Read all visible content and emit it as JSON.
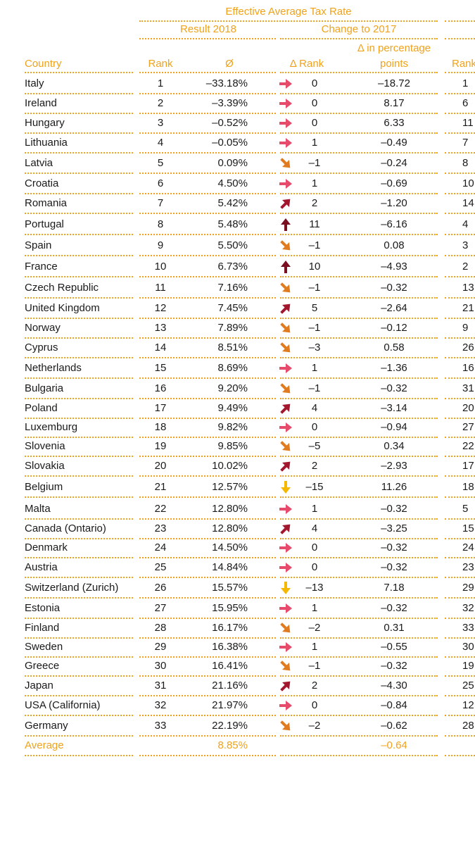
{
  "header": {
    "title": "Effective Average Tax Rate",
    "group_result": "Result 2018",
    "group_change": "Change to 2017",
    "col_country": "Country",
    "col_rank": "Rank",
    "col_avg": "Ø",
    "col_delta_rank": "Δ Rank",
    "col_delta_pp_line1": "Δ in percentage",
    "col_delta_pp_line2": "points",
    "col_rank_cut": "Rank"
  },
  "rows": [
    {
      "country": "Italy",
      "rank": "1",
      "rate": "–33.18%",
      "trend": "right",
      "delta_rank": "0",
      "delta_pp": "–18.72",
      "rank_next": "1"
    },
    {
      "country": "Ireland",
      "rank": "2",
      "rate": "–3.39%",
      "trend": "right",
      "delta_rank": "0",
      "delta_pp": "8.17",
      "rank_next": "6"
    },
    {
      "country": "Hungary",
      "rank": "3",
      "rate": "–0.52%",
      "trend": "right",
      "delta_rank": "0",
      "delta_pp": "6.33",
      "rank_next": "11"
    },
    {
      "country": "Lithuania",
      "rank": "4",
      "rate": "–0.05%",
      "trend": "right",
      "delta_rank": "1",
      "delta_pp": "–0.49",
      "rank_next": "7"
    },
    {
      "country": "Latvia",
      "rank": "5",
      "rate": "0.09%",
      "trend": "down-right",
      "delta_rank": "–1",
      "delta_pp": "–0.24",
      "rank_next": "8"
    },
    {
      "country": "Croatia",
      "rank": "6",
      "rate": "4.50%",
      "trend": "right",
      "delta_rank": "1",
      "delta_pp": "–0.69",
      "rank_next": "10"
    },
    {
      "country": "Romania",
      "rank": "7",
      "rate": "5.42%",
      "trend": "up-right",
      "delta_rank": "2",
      "delta_pp": "–1.20",
      "rank_next": "14"
    },
    {
      "country": "Portugal",
      "rank": "8",
      "rate": "5.48%",
      "trend": "up",
      "delta_rank": "11",
      "delta_pp": "–6.16",
      "rank_next": "4"
    },
    {
      "country": "Spain",
      "rank": "9",
      "rate": "5.50%",
      "trend": "down-right",
      "delta_rank": "–1",
      "delta_pp": "0.08",
      "rank_next": "3"
    },
    {
      "country": "France",
      "rank": "10",
      "rate": "6.73%",
      "trend": "up",
      "delta_rank": "10",
      "delta_pp": "–4.93",
      "rank_next": "2"
    },
    {
      "country": "Czech Republic",
      "rank": "11",
      "rate": "7.16%",
      "trend": "down-right",
      "delta_rank": "–1",
      "delta_pp": "–0.32",
      "rank_next": "13"
    },
    {
      "country": "United Kingdom",
      "rank": "12",
      "rate": "7.45%",
      "trend": "up-right",
      "delta_rank": "5",
      "delta_pp": "–2.64",
      "rank_next": "21"
    },
    {
      "country": "Norway",
      "rank": "13",
      "rate": "7.89%",
      "trend": "down-right",
      "delta_rank": "–1",
      "delta_pp": "–0.12",
      "rank_next": "9"
    },
    {
      "country": "Cyprus",
      "rank": "14",
      "rate": "8.51%",
      "trend": "down-right",
      "delta_rank": "–3",
      "delta_pp": "0.58",
      "rank_next": "26"
    },
    {
      "country": "Netherlands",
      "rank": "15",
      "rate": "8.69%",
      "trend": "right",
      "delta_rank": "1",
      "delta_pp": "–1.36",
      "rank_next": "16"
    },
    {
      "country": "Bulgaria",
      "rank": "16",
      "rate": "9.20%",
      "trend": "down-right",
      "delta_rank": "–1",
      "delta_pp": "–0.32",
      "rank_next": "31"
    },
    {
      "country": "Poland",
      "rank": "17",
      "rate": "9.49%",
      "trend": "up-right",
      "delta_rank": "4",
      "delta_pp": "–3.14",
      "rank_next": "20"
    },
    {
      "country": "Luxemburg",
      "rank": "18",
      "rate": "9.82%",
      "trend": "right",
      "delta_rank": "0",
      "delta_pp": "–0.94",
      "rank_next": "27"
    },
    {
      "country": "Slovenia",
      "rank": "19",
      "rate": "9.85%",
      "trend": "down-right",
      "delta_rank": "–5",
      "delta_pp": "0.34",
      "rank_next": "22"
    },
    {
      "country": "Slovakia",
      "rank": "20",
      "rate": "10.02%",
      "trend": "up-right",
      "delta_rank": "2",
      "delta_pp": "–2.93",
      "rank_next": "17"
    },
    {
      "country": "Belgium",
      "rank": "21",
      "rate": "12.57%",
      "trend": "down",
      "delta_rank": "–15",
      "delta_pp": "11.26",
      "rank_next": "18"
    },
    {
      "country": "Malta",
      "rank": "22",
      "rate": "12.80%",
      "trend": "right",
      "delta_rank": "1",
      "delta_pp": "–0.32",
      "rank_next": "5"
    },
    {
      "country": "Canada (Ontario)",
      "rank": "23",
      "rate": "12.80%",
      "trend": "up-right",
      "delta_rank": "4",
      "delta_pp": "–3.25",
      "rank_next": "15"
    },
    {
      "country": "Denmark",
      "rank": "24",
      "rate": "14.50%",
      "trend": "right",
      "delta_rank": "0",
      "delta_pp": "–0.32",
      "rank_next": "24"
    },
    {
      "country": "Austria",
      "rank": "25",
      "rate": "14.84%",
      "trend": "right",
      "delta_rank": "0",
      "delta_pp": "–0.32",
      "rank_next": "23"
    },
    {
      "country": "Switzerland (Zurich)",
      "rank": "26",
      "rate": "15.57%",
      "trend": "down",
      "delta_rank": "–13",
      "delta_pp": "7.18",
      "rank_next": "29"
    },
    {
      "country": "Estonia",
      "rank": "27",
      "rate": "15.95%",
      "trend": "right",
      "delta_rank": "1",
      "delta_pp": "–0.32",
      "rank_next": "32"
    },
    {
      "country": "Finland",
      "rank": "28",
      "rate": "16.17%",
      "trend": "down-right",
      "delta_rank": "–2",
      "delta_pp": "0.31",
      "rank_next": "33"
    },
    {
      "country": "Sweden",
      "rank": "29",
      "rate": "16.38%",
      "trend": "right",
      "delta_rank": "1",
      "delta_pp": "–0.55",
      "rank_next": "30"
    },
    {
      "country": "Greece",
      "rank": "30",
      "rate": "16.41%",
      "trend": "down-right",
      "delta_rank": "–1",
      "delta_pp": "–0.32",
      "rank_next": "19"
    },
    {
      "country": "Japan",
      "rank": "31",
      "rate": "21.16%",
      "trend": "up-right",
      "delta_rank": "2",
      "delta_pp": "–4.30",
      "rank_next": "25"
    },
    {
      "country": "USA (California)",
      "rank": "32",
      "rate": "21.97%",
      "trend": "right",
      "delta_rank": "0",
      "delta_pp": "–0.84",
      "rank_next": "12"
    },
    {
      "country": "Germany",
      "rank": "33",
      "rate": "22.19%",
      "trend": "down-right",
      "delta_rank": "–2",
      "delta_pp": "–0.62",
      "rank_next": "28"
    }
  ],
  "average": {
    "label": "Average",
    "rate": "8.85%",
    "delta_pp": "–0.64"
  },
  "colors": {
    "accent": "#f0a21b",
    "right": "#e84a6c",
    "down-right": "#e07b1f",
    "up-right": "#a3172e",
    "up": "#7a0f22",
    "down": "#f5b800"
  }
}
